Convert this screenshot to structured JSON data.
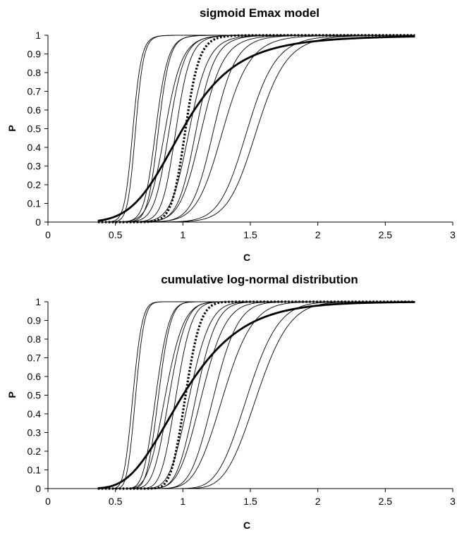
{
  "chart_data": [
    {
      "type": "line",
      "title": "sigmoid Emax model",
      "xlabel": "C",
      "ylabel": "P",
      "xlim": [
        0,
        3
      ],
      "ylim": [
        0,
        1
      ],
      "xticks": [
        "0",
        "0.5",
        "1",
        "1.5",
        "2",
        "2.5",
        "3"
      ],
      "yticks": [
        "0",
        "0.1",
        "0.2",
        "0.3",
        "0.4",
        "0.5",
        "0.6",
        "0.7",
        "0.8",
        "0.9",
        "1"
      ],
      "grid": false,
      "legend": "none",
      "x_range": [
        0.37,
        2.72
      ],
      "model": "sigmoid Emax",
      "series": [
        {
          "style": "thin",
          "c50": 0.63,
          "slope": 20
        },
        {
          "style": "thin",
          "c50": 0.65,
          "slope": 22
        },
        {
          "style": "thin",
          "c50": 0.8,
          "slope": 18
        },
        {
          "style": "thin",
          "c50": 0.82,
          "slope": 20
        },
        {
          "style": "thin",
          "c50": 0.87,
          "slope": 14
        },
        {
          "style": "thin",
          "c50": 0.9,
          "slope": 16
        },
        {
          "style": "thin",
          "c50": 0.95,
          "slope": 18
        },
        {
          "style": "thin",
          "c50": 1.05,
          "slope": 15
        },
        {
          "style": "thin",
          "c50": 1.1,
          "slope": 16
        },
        {
          "style": "thin",
          "c50": 1.14,
          "slope": 14
        },
        {
          "style": "thin",
          "c50": 1.23,
          "slope": 15
        },
        {
          "style": "thin",
          "c50": 1.3,
          "slope": 13
        },
        {
          "style": "thin",
          "c50": 1.48,
          "slope": 14
        },
        {
          "style": "thin",
          "c50": 1.55,
          "slope": 14
        },
        {
          "style": "dotted",
          "c50": 1.02,
          "slope": 20
        },
        {
          "style": "thick",
          "c50": 1.0,
          "slope": 5
        }
      ]
    },
    {
      "type": "line",
      "title": "cumulative log-normal distribution",
      "xlabel": "C",
      "ylabel": "P",
      "xlim": [
        0,
        3
      ],
      "ylim": [
        0,
        1
      ],
      "xticks": [
        "0",
        "0.5",
        "1",
        "1.5",
        "2",
        "2.5",
        "3"
      ],
      "yticks": [
        "0",
        "0.1",
        "0.2",
        "0.3",
        "0.4",
        "0.5",
        "0.6",
        "0.7",
        "0.8",
        "0.9",
        "1"
      ],
      "grid": false,
      "legend": "none",
      "x_range": [
        0.37,
        2.72
      ],
      "model": "cumulative log-normal",
      "series": [
        {
          "style": "thin",
          "c50": 0.63,
          "slope": 20
        },
        {
          "style": "thin",
          "c50": 0.65,
          "slope": 22
        },
        {
          "style": "thin",
          "c50": 0.8,
          "slope": 18
        },
        {
          "style": "thin",
          "c50": 0.82,
          "slope": 20
        },
        {
          "style": "thin",
          "c50": 0.87,
          "slope": 14
        },
        {
          "style": "thin",
          "c50": 0.9,
          "slope": 16
        },
        {
          "style": "thin",
          "c50": 0.95,
          "slope": 18
        },
        {
          "style": "thin",
          "c50": 1.05,
          "slope": 15
        },
        {
          "style": "thin",
          "c50": 1.1,
          "slope": 16
        },
        {
          "style": "thin",
          "c50": 1.14,
          "slope": 14
        },
        {
          "style": "thin",
          "c50": 1.23,
          "slope": 15
        },
        {
          "style": "thin",
          "c50": 1.3,
          "slope": 13
        },
        {
          "style": "thin",
          "c50": 1.48,
          "slope": 14
        },
        {
          "style": "thin",
          "c50": 1.55,
          "slope": 14
        },
        {
          "style": "dotted",
          "c50": 1.02,
          "slope": 20
        },
        {
          "style": "thick",
          "c50": 1.0,
          "slope": 5
        }
      ]
    }
  ]
}
